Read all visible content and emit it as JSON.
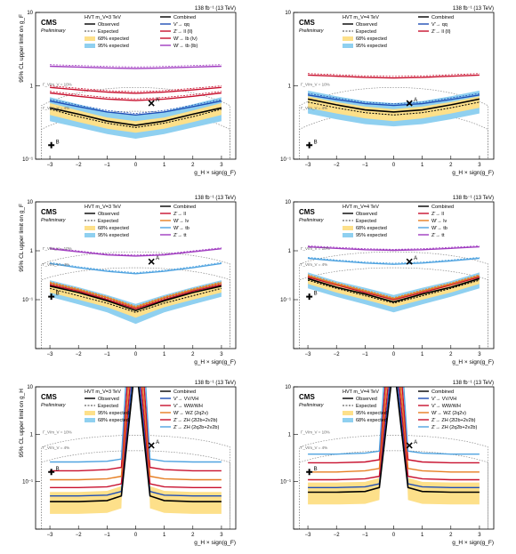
{
  "colors": {
    "observed": "#000000",
    "expected": "#000000",
    "band68": "#fde08a",
    "band95": "#8fd0f0",
    "blue": "#1f4eb5",
    "red": "#c8102e",
    "purple": "#a03cc0",
    "magenta": "#c05ab0",
    "orange": "#e67e22",
    "lightblue": "#4fa3e0",
    "gray": "#888888"
  },
  "chart_data": [
    {
      "type": "line",
      "panel": "top-left",
      "lumi": "138 fb⁻¹ (13 TeV)",
      "cms": "CMS",
      "prelim": "Preliminary",
      "model": "HVT m_V=3 TeV",
      "ylabel": "95% CL upper limit on g_F",
      "xlabel": "g_H × sign(g_F)",
      "xlim": [
        -3.5,
        3.5
      ],
      "ylim": [
        0.1,
        10
      ],
      "yscale": "log",
      "xticks": [
        "−3",
        "−2",
        "−1",
        "0",
        "1",
        "2",
        "3"
      ],
      "yticks": [
        "10⁻¹",
        "1",
        "10"
      ],
      "legend": {
        "left": [
          "Observed",
          "Expected",
          "68% expected",
          "95% expected"
        ],
        "right": [
          "Combined",
          "V′→ qq",
          "Z′→ ll (ll)",
          "W′→ lb (lν)",
          "W′→ tb (lb)"
        ]
      },
      "annotations": [
        "Γ_V/m_V = 10%",
        "Γ_V/m_V = 4%",
        "A",
        "B"
      ],
      "x": [
        -3,
        -2,
        -1,
        0,
        1,
        2,
        3
      ],
      "expected": [
        0.48,
        0.38,
        0.31,
        0.27,
        0.31,
        0.38,
        0.48
      ],
      "observed": [
        0.5,
        0.41,
        0.33,
        0.29,
        0.33,
        0.41,
        0.5
      ],
      "band68_lo": [
        0.4,
        0.32,
        0.26,
        0.23,
        0.26,
        0.32,
        0.4
      ],
      "band68_hi": [
        0.58,
        0.46,
        0.37,
        0.33,
        0.37,
        0.46,
        0.58
      ],
      "band95_lo": [
        0.33,
        0.27,
        0.22,
        0.19,
        0.22,
        0.27,
        0.33
      ],
      "band95_hi": [
        0.7,
        0.56,
        0.45,
        0.4,
        0.45,
        0.56,
        0.7
      ],
      "series": [
        {
          "name": "V′→ qq",
          "color": "#1f4eb5",
          "values": [
            0.62,
            0.52,
            0.44,
            0.4,
            0.44,
            0.52,
            0.62
          ]
        },
        {
          "name": "Z′→ ll (ll)",
          "color": "#c8102e",
          "values": [
            0.95,
            0.88,
            0.82,
            0.79,
            0.82,
            0.88,
            0.95
          ]
        },
        {
          "name": "W′→ lb (lν)",
          "color": "#c8102e",
          "values": [
            0.8,
            0.72,
            0.66,
            0.63,
            0.66,
            0.72,
            0.8
          ]
        },
        {
          "name": "W′→ tb (lb)",
          "color": "#a03cc0",
          "values": [
            1.85,
            1.8,
            1.75,
            1.72,
            1.75,
            1.8,
            1.85
          ]
        }
      ],
      "markers": [
        {
          "label": "A",
          "x": 0.55,
          "y": 0.58
        },
        {
          "label": "B",
          "x": -2.95,
          "y": 0.155
        }
      ]
    },
    {
      "type": "line",
      "panel": "top-right",
      "lumi": "138 fb⁻¹ (13 TeV)",
      "cms": "CMS",
      "prelim": "Preliminary",
      "model": "HVT m_V=4 TeV",
      "ylabel": "",
      "xlabel": "g_H × sign(g_F)",
      "xlim": [
        -3.5,
        3.5
      ],
      "ylim": [
        0.1,
        10
      ],
      "yscale": "log",
      "xticks": [
        "−3",
        "−2",
        "−1",
        "0",
        "1",
        "2",
        "3"
      ],
      "yticks": [
        "10⁻¹",
        "1",
        "10"
      ],
      "legend": {
        "left": [
          "Observed",
          "Expected",
          "68% expected",
          "95% expected"
        ],
        "right": [
          "Combined",
          "V′→ qq",
          "Z′→ ll (ll)"
        ]
      },
      "annotations": [
        "Γ_V/m_V = 10%",
        "Γ_V/m_V = 4%",
        "A",
        "B"
      ],
      "x": [
        -3,
        -2,
        -1,
        0,
        1,
        2,
        3
      ],
      "expected": [
        0.6,
        0.5,
        0.43,
        0.4,
        0.43,
        0.5,
        0.6
      ],
      "observed": [
        0.66,
        0.55,
        0.47,
        0.44,
        0.47,
        0.55,
        0.66
      ],
      "band68_lo": [
        0.5,
        0.42,
        0.36,
        0.33,
        0.36,
        0.42,
        0.5
      ],
      "band68_hi": [
        0.72,
        0.6,
        0.52,
        0.48,
        0.52,
        0.6,
        0.72
      ],
      "band95_lo": [
        0.42,
        0.35,
        0.3,
        0.28,
        0.3,
        0.35,
        0.42
      ],
      "band95_hi": [
        0.86,
        0.72,
        0.62,
        0.58,
        0.62,
        0.72,
        0.86
      ],
      "series": [
        {
          "name": "V′→ qq",
          "color": "#1f4eb5",
          "values": [
            0.75,
            0.65,
            0.57,
            0.54,
            0.57,
            0.65,
            0.75
          ]
        },
        {
          "name": "Z′→ ll (ll)",
          "color": "#c8102e",
          "values": [
            1.4,
            1.35,
            1.3,
            1.28,
            1.3,
            1.35,
            1.4
          ]
        }
      ],
      "markers": [
        {
          "label": "A",
          "x": 0.55,
          "y": 0.58
        },
        {
          "label": "B",
          "x": -2.95,
          "y": 0.155
        }
      ]
    },
    {
      "type": "line",
      "panel": "middle-left",
      "lumi": "138 fb⁻¹ (13 TeV)",
      "cms": "CMS",
      "prelim": "Preliminary",
      "model": "HVT m_V=3 TeV",
      "ylabel": "95% CL upper limit on g_F",
      "xlabel": "g_H × sign(g_F)",
      "xlim": [
        -3.5,
        3.5
      ],
      "ylim": [
        0.01,
        10
      ],
      "yscale": "log",
      "xticks": [
        "−3",
        "−2",
        "−1",
        "0",
        "1",
        "2",
        "3"
      ],
      "yticks": [
        "10⁻¹",
        "1",
        "10"
      ],
      "legend": {
        "left": [
          "Observed",
          "Expected",
          "68% expected",
          "95% expected"
        ],
        "right": [
          "Combined",
          "Z′→ ll",
          "W′→ lν",
          "W′→ tb",
          "Z′→ tt"
        ]
      },
      "annotations": [
        "Γ_V/m_V = 10%",
        "Γ_V/m_V = 4%",
        "A",
        "B"
      ],
      "x": [
        -3,
        -2,
        -1,
        0,
        1,
        2,
        3
      ],
      "expected": [
        0.17,
        0.12,
        0.085,
        0.055,
        0.085,
        0.12,
        0.17
      ],
      "observed": [
        0.19,
        0.14,
        0.095,
        0.06,
        0.095,
        0.14,
        0.19
      ],
      "band68_lo": [
        0.14,
        0.1,
        0.07,
        0.043,
        0.07,
        0.1,
        0.14
      ],
      "band68_hi": [
        0.21,
        0.15,
        0.105,
        0.068,
        0.105,
        0.15,
        0.21
      ],
      "band95_lo": [
        0.115,
        0.08,
        0.055,
        0.032,
        0.055,
        0.08,
        0.115
      ],
      "band95_hi": [
        0.25,
        0.18,
        0.125,
        0.082,
        0.125,
        0.18,
        0.25
      ],
      "series": [
        {
          "name": "Z′→ ll",
          "color": "#c8102e",
          "values": [
            0.2,
            0.15,
            0.1,
            0.065,
            0.1,
            0.15,
            0.2
          ]
        },
        {
          "name": "W′→ lν",
          "color": "#e67e22",
          "values": [
            0.22,
            0.16,
            0.11,
            0.07,
            0.11,
            0.16,
            0.22
          ]
        },
        {
          "name": "W′→ tb",
          "color": "#4fa3e0",
          "values": [
            0.55,
            0.45,
            0.38,
            0.34,
            0.38,
            0.45,
            0.55
          ]
        },
        {
          "name": "Z′→ tt",
          "color": "#a03cc0",
          "values": [
            1.1,
            0.95,
            0.82,
            0.78,
            0.82,
            0.95,
            1.1
          ]
        }
      ],
      "markers": [
        {
          "label": "A",
          "x": 0.55,
          "y": 0.6
        },
        {
          "label": "B",
          "x": -2.95,
          "y": 0.115
        }
      ]
    },
    {
      "type": "line",
      "panel": "middle-right",
      "lumi": "138 fb⁻¹ (13 TeV)",
      "cms": "CMS",
      "prelim": "Preliminary",
      "model": "HVT m_V=4 TeV",
      "ylabel": "",
      "xlabel": "g_H × sign(g_F)",
      "xlim": [
        -3.5,
        3.5
      ],
      "ylim": [
        0.01,
        10
      ],
      "yscale": "log",
      "xticks": [
        "−3",
        "−2",
        "−1",
        "0",
        "1",
        "2",
        "3"
      ],
      "yticks": [
        "10⁻¹",
        "1",
        "10"
      ],
      "legend": {
        "left": [
          "Observed",
          "Expected",
          "68% expected",
          "95% expected"
        ],
        "right": [
          "Combined",
          "Z′→ ll",
          "W′→ lν",
          "W′→ tb",
          "Z′→ tt"
        ]
      },
      "annotations": [
        "Γ_V/m_V = 10%",
        "Γ_V/m_V = 4%",
        "A",
        "B"
      ],
      "x": [
        -3,
        -2,
        -1,
        0,
        1,
        2,
        3
      ],
      "expected": [
        0.25,
        0.17,
        0.12,
        0.085,
        0.12,
        0.17,
        0.25
      ],
      "observed": [
        0.27,
        0.18,
        0.13,
        0.09,
        0.13,
        0.18,
        0.27
      ],
      "band68_lo": [
        0.21,
        0.14,
        0.1,
        0.07,
        0.1,
        0.14,
        0.21
      ],
      "band68_hi": [
        0.3,
        0.2,
        0.145,
        0.1,
        0.145,
        0.2,
        0.3
      ],
      "band95_lo": [
        0.17,
        0.115,
        0.08,
        0.055,
        0.08,
        0.115,
        0.17
      ],
      "band95_hi": [
        0.36,
        0.24,
        0.175,
        0.125,
        0.175,
        0.24,
        0.36
      ],
      "series": [
        {
          "name": "Z′→ ll",
          "color": "#c8102e",
          "values": [
            0.29,
            0.2,
            0.14,
            0.1,
            0.14,
            0.2,
            0.29
          ]
        },
        {
          "name": "W′→ lν",
          "color": "#e67e22",
          "values": [
            0.31,
            0.21,
            0.15,
            0.105,
            0.15,
            0.21,
            0.31
          ]
        },
        {
          "name": "W′→ tb",
          "color": "#4fa3e0",
          "values": [
            0.7,
            0.62,
            0.56,
            0.53,
            0.56,
            0.62,
            0.7
          ]
        },
        {
          "name": "Z′→ tt",
          "color": "#a03cc0",
          "values": [
            1.2,
            1.12,
            1.05,
            1.02,
            1.05,
            1.12,
            1.2
          ]
        }
      ],
      "markers": [
        {
          "label": "A",
          "x": 0.55,
          "y": 0.6
        },
        {
          "label": "B",
          "x": -2.95,
          "y": 0.115
        }
      ]
    },
    {
      "type": "line",
      "panel": "bottom-left",
      "lumi": "138 fb⁻¹ (13 TeV)",
      "cms": "CMS",
      "prelim": "Preliminary",
      "model": "HVT m_V=3 TeV",
      "ylabel": "95% CL upper limit on g_H",
      "xlabel": "g_H × sign(g_F)",
      "xlim": [
        -3.5,
        3.5
      ],
      "ylim": [
        0.01,
        10
      ],
      "yscale": "log",
      "xticks": [
        "−3",
        "−2",
        "−1",
        "0",
        "1",
        "2",
        "3"
      ],
      "yticks": [
        "10⁻¹",
        "1",
        "10"
      ],
      "legend": {
        "left": [
          "Observed",
          "Expected",
          "95% expected",
          "68% expected"
        ],
        "right": [
          "Combined",
          "V′→ VV/VH",
          "V′→ WW/WH",
          "W′→ WZ (2q2ν)",
          "Z′→ ZH (2l2b+2ν2b)",
          "Z′→ ZH (2q2b+2ν2b)"
        ]
      },
      "annotations": [
        "Γ_V/m_V = 10%",
        "Γ_V/m_V = 4%",
        "A",
        "B"
      ],
      "x": [
        -3,
        -2,
        -1,
        -0.5,
        0.5,
        1,
        2,
        3
      ],
      "expected": [
        0.038,
        0.038,
        0.04,
        0.05,
        0.05,
        0.04,
        0.038,
        0.038
      ],
      "series": [
        {
          "name": "V′→ VV/VH",
          "color": "#1f4eb5",
          "values": [
            0.05,
            0.05,
            0.052,
            0.062,
            0.062,
            0.052,
            0.05,
            0.05
          ]
        },
        {
          "name": "V′→ WW/WH",
          "color": "#c8102e",
          "values": [
            0.075,
            0.075,
            0.078,
            0.09,
            0.09,
            0.078,
            0.075,
            0.075
          ]
        },
        {
          "name": "W′→ WZ (2q2ν)",
          "color": "#e67e22",
          "values": [
            0.11,
            0.11,
            0.115,
            0.13,
            0.13,
            0.115,
            0.11,
            0.11
          ]
        },
        {
          "name": "Z′→ ZH (2l2b+2ν2b)",
          "color": "#c8102e",
          "values": [
            0.17,
            0.17,
            0.18,
            0.2,
            0.2,
            0.18,
            0.17,
            0.17
          ]
        },
        {
          "name": "Z′→ ZH (2q2b+2ν2b)",
          "color": "#4fa3e0",
          "values": [
            0.26,
            0.26,
            0.27,
            0.3,
            0.3,
            0.27,
            0.26,
            0.26
          ]
        }
      ],
      "markers": [
        {
          "label": "A",
          "x": 0.55,
          "y": 0.58
        },
        {
          "label": "B",
          "x": -2.95,
          "y": 0.16
        }
      ]
    },
    {
      "type": "line",
      "panel": "bottom-right",
      "lumi": "138 fb⁻¹ (13 TeV)",
      "cms": "CMS",
      "prelim": "Preliminary",
      "model": "HVT m_V=4 TeV",
      "ylabel": "",
      "xlabel": "g_H × sign(g_F)",
      "xlim": [
        -3.5,
        3.5
      ],
      "ylim": [
        0.01,
        10
      ],
      "yscale": "log",
      "xticks": [
        "−3",
        "−2",
        "−1",
        "0",
        "1",
        "2",
        "3"
      ],
      "yticks": [
        "10⁻¹",
        "1",
        "10"
      ],
      "legend": {
        "left": [
          "Observed",
          "Expected",
          "95% expected",
          "68% expected"
        ],
        "right": [
          "Combined",
          "V′→ VV/VH",
          "V′→ WW/WH",
          "W′→ WZ (2q2ν)",
          "Z′→ ZH (2l2b+2ν2b)",
          "Z′→ ZH (2q2b+2ν2b)"
        ]
      },
      "annotations": [
        "Γ_V/m_V = 10%",
        "Γ_V/m_V = 4%",
        "A",
        "B"
      ],
      "x": [
        -3,
        -2,
        -1,
        -0.5,
        0.5,
        1,
        2,
        3
      ],
      "expected": [
        0.06,
        0.06,
        0.062,
        0.075,
        0.075,
        0.062,
        0.06,
        0.06
      ],
      "series": [
        {
          "name": "V′→ VV/VH",
          "color": "#1f4eb5",
          "values": [
            0.075,
            0.075,
            0.078,
            0.09,
            0.09,
            0.078,
            0.075,
            0.075
          ]
        },
        {
          "name": "V′→ WW/WH",
          "color": "#c8102e",
          "values": [
            0.11,
            0.11,
            0.115,
            0.13,
            0.13,
            0.115,
            0.11,
            0.11
          ]
        },
        {
          "name": "W′→ WZ (2q2ν)",
          "color": "#e67e22",
          "values": [
            0.16,
            0.16,
            0.17,
            0.19,
            0.19,
            0.17,
            0.16,
            0.16
          ]
        },
        {
          "name": "Z′→ ZH (2l2b+2ν2b)",
          "color": "#c8102e",
          "values": [
            0.25,
            0.25,
            0.26,
            0.29,
            0.29,
            0.26,
            0.25,
            0.25
          ]
        },
        {
          "name": "Z′→ ZH (2q2b+2ν2b)",
          "color": "#4fa3e0",
          "values": [
            0.38,
            0.38,
            0.4,
            0.44,
            0.44,
            0.4,
            0.38,
            0.38
          ]
        }
      ],
      "markers": [
        {
          "label": "A",
          "x": 0.55,
          "y": 0.58
        },
        {
          "label": "B",
          "x": -2.95,
          "y": 0.16
        }
      ]
    }
  ]
}
